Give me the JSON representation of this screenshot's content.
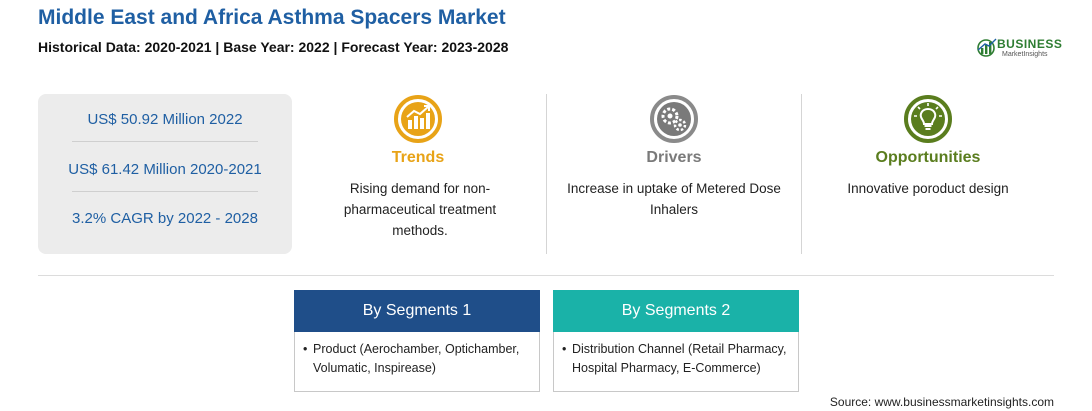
{
  "header": {
    "title": "Middle East and Africa Asthma Spacers Market",
    "subtitle": "Historical Data: 2020-2021 | Base Year: 2022 | Forecast Year: 2023-2028"
  },
  "logo": {
    "word": "BUSINESS",
    "sub": "MarketInsights"
  },
  "stats": [
    "US$ 50.92 Million 2022",
    "US$ 61.42 Million 2020-2021",
    "3.2% CAGR by 2022 - 2028"
  ],
  "cards": [
    {
      "label": "Trends",
      "desc": "Rising demand for non-pharmaceutical treatment methods.",
      "color": "#e8a317",
      "icon": "trend-chart-icon"
    },
    {
      "label": "Drivers",
      "desc": "Increase in uptake of Metered Dose Inhalers",
      "color": "#7a7a7a",
      "icon": "gears-icon"
    },
    {
      "label": "Opportunities",
      "desc": "Innovative poroduct design",
      "color": "#5a7d1e",
      "icon": "lightbulb-icon"
    }
  ],
  "segments": [
    {
      "title": "By Segments 1",
      "bullet": "•",
      "text": "Product (Aerochamber, Optichamber, Volumatic, Inspirease)",
      "color": "#1f4e89"
    },
    {
      "title": "By Segments 2",
      "bullet": "•",
      "text": "Distribution Channel (Retail Pharmacy, Hospital Pharmacy, E-Commerce)",
      "color": "#1ab2a8"
    }
  ],
  "source": "Source: www.businessmarketinsights.com"
}
